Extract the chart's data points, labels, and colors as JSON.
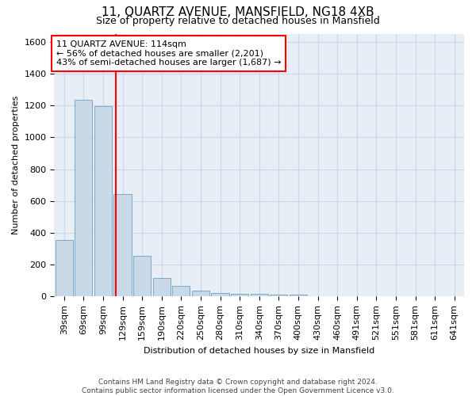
{
  "title": "11, QUARTZ AVENUE, MANSFIELD, NG18 4XB",
  "subtitle": "Size of property relative to detached houses in Mansfield",
  "xlabel": "Distribution of detached houses by size in Mansfield",
  "ylabel": "Number of detached properties",
  "footer_line1": "Contains HM Land Registry data © Crown copyright and database right 2024.",
  "footer_line2": "Contains public sector information licensed under the Open Government Licence v3.0.",
  "categories": [
    "39sqm",
    "69sqm",
    "99sqm",
    "129sqm",
    "159sqm",
    "190sqm",
    "220sqm",
    "250sqm",
    "280sqm",
    "310sqm",
    "340sqm",
    "370sqm",
    "400sqm",
    "430sqm",
    "460sqm",
    "491sqm",
    "521sqm",
    "551sqm",
    "581sqm",
    "611sqm",
    "641sqm"
  ],
  "values": [
    355,
    1235,
    1195,
    645,
    255,
    115,
    65,
    35,
    20,
    18,
    15,
    12,
    10,
    0,
    0,
    0,
    0,
    0,
    0,
    0,
    0
  ],
  "bar_color": "#c9d9e8",
  "bar_edge_color": "#7aaac8",
  "grid_color": "#c8d8e8",
  "bg_color": "#e8eef5",
  "annotation_line1": "11 QUARTZ AVENUE: 114sqm",
  "annotation_line2": "← 56% of detached houses are smaller (2,201)",
  "annotation_line3": "43% of semi-detached houses are larger (1,687) →",
  "vline_x": 2.67,
  "ylim": [
    0,
    1650
  ],
  "yticks": [
    0,
    200,
    400,
    600,
    800,
    1000,
    1200,
    1400,
    1600
  ],
  "title_fontsize": 11,
  "subtitle_fontsize": 9,
  "axis_label_fontsize": 8,
  "tick_fontsize": 8,
  "annotation_fontsize": 8
}
